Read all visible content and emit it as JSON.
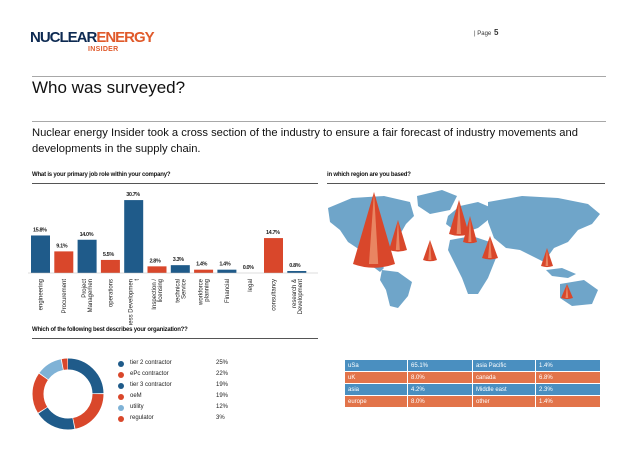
{
  "header": {
    "logo_main_a": "NUCLEAR",
    "logo_main_b": "ENERGY",
    "logo_sub": "INSIDER",
    "page_label": "| Page",
    "page_number": "5"
  },
  "title": "Who was surveyed?",
  "intro": "Nuclear energy Insider took a cross section of the industry to ensure a fair forecast of industry movements and developments in the supply chain.",
  "colors": {
    "blue": "#1f5b8a",
    "orange": "#d9472b",
    "map_land": "#6fa5c9",
    "light_blue": "#7fb2d6"
  },
  "job_question": "What is your primary job role within your company?",
  "region_question": "in which region are you based?",
  "org_question": "Which of the following best describes your organization??",
  "chart_data": [
    {
      "type": "bar",
      "title": "What is your primary job role within your company?",
      "categories": [
        "engineering",
        "Procurement",
        "Project Managemen",
        "operations",
        "Business Developmen t",
        "Inspection / licensing",
        "technical Service",
        "workforce planning",
        "Financial",
        "legal",
        "consultancy",
        "research & Development"
      ],
      "values": [
        15.8,
        9.1,
        14.0,
        5.5,
        30.7,
        2.8,
        3.3,
        1.4,
        1.4,
        0.0,
        14.7,
        0.8
      ],
      "value_labels": [
        "15.8%",
        "9.1%",
        "14.0%",
        "5.5%",
        "30.7%",
        "2.8%",
        "3.3%",
        "1.4%",
        "1.4%",
        "0.0%",
        "14.7%",
        "0.8%"
      ],
      "bar_colors": [
        "#1f5b8a",
        "#d9472b",
        "#1f5b8a",
        "#d9472b",
        "#1f5b8a",
        "#d9472b",
        "#1f5b8a",
        "#d9472b",
        "#1f5b8a",
        "#d9472b",
        "#d9472b",
        "#1f5b8a"
      ],
      "ylim": [
        0,
        32
      ]
    },
    {
      "type": "pie",
      "title": "Which of the following best describes your organization??",
      "labels": [
        "tier 2 contractor",
        "ePc contractor",
        "tier 3 contractor",
        "oeM",
        "utility",
        "regulator"
      ],
      "values": [
        25,
        22,
        19,
        19,
        12,
        3
      ],
      "value_labels": [
        "25%",
        "22%",
        "19%",
        "19%",
        "12%",
        "3%"
      ],
      "colors": [
        "#1f5b8a",
        "#d9472b",
        "#1f5b8a",
        "#d9472b",
        "#7fb2d6",
        "#d9472b"
      ]
    },
    {
      "type": "table",
      "title": "in which region are you based?",
      "rows": [
        {
          "left": "uSa",
          "left_val": "65.1%",
          "right": "asia Pacific",
          "right_val": "1.4%"
        },
        {
          "left": "uK",
          "left_val": "8.0%",
          "right": "canada",
          "right_val": "6.8%"
        },
        {
          "left": "asia",
          "left_val": "4.2%",
          "right": "Middle east",
          "right_val": "2.3%"
        },
        {
          "left": "europe",
          "left_val": "8.0%",
          "right": "other",
          "right_val": "1.4%"
        }
      ]
    }
  ]
}
